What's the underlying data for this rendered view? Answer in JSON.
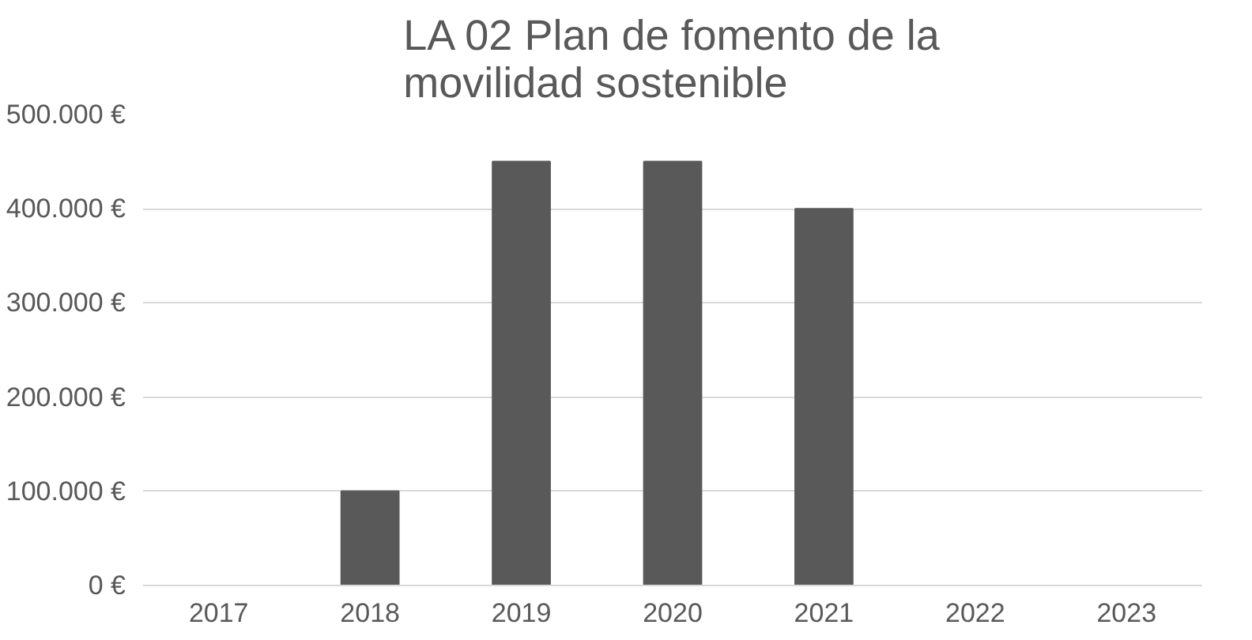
{
  "chart_data": {
    "type": "bar",
    "title": "LA 02 Plan de fomento de la movilidad sostenible",
    "categories": [
      "2017",
      "2018",
      "2019",
      "2020",
      "2021",
      "2022",
      "2023"
    ],
    "values": [
      0,
      100000,
      450000,
      450000,
      400000,
      0,
      0
    ],
    "color": "#595959",
    "ylim": [
      0,
      500000
    ],
    "yticks": [
      {
        "value": 0,
        "label": "0 €"
      },
      {
        "value": 100000,
        "label": "100.000 €"
      },
      {
        "value": 200000,
        "label": "200.000 €"
      },
      {
        "value": 300000,
        "label": "300.000 €"
      },
      {
        "value": 400000,
        "label": "400.000 €"
      },
      {
        "value": 500000,
        "label": "500.000 €"
      }
    ],
    "grid": "y"
  }
}
